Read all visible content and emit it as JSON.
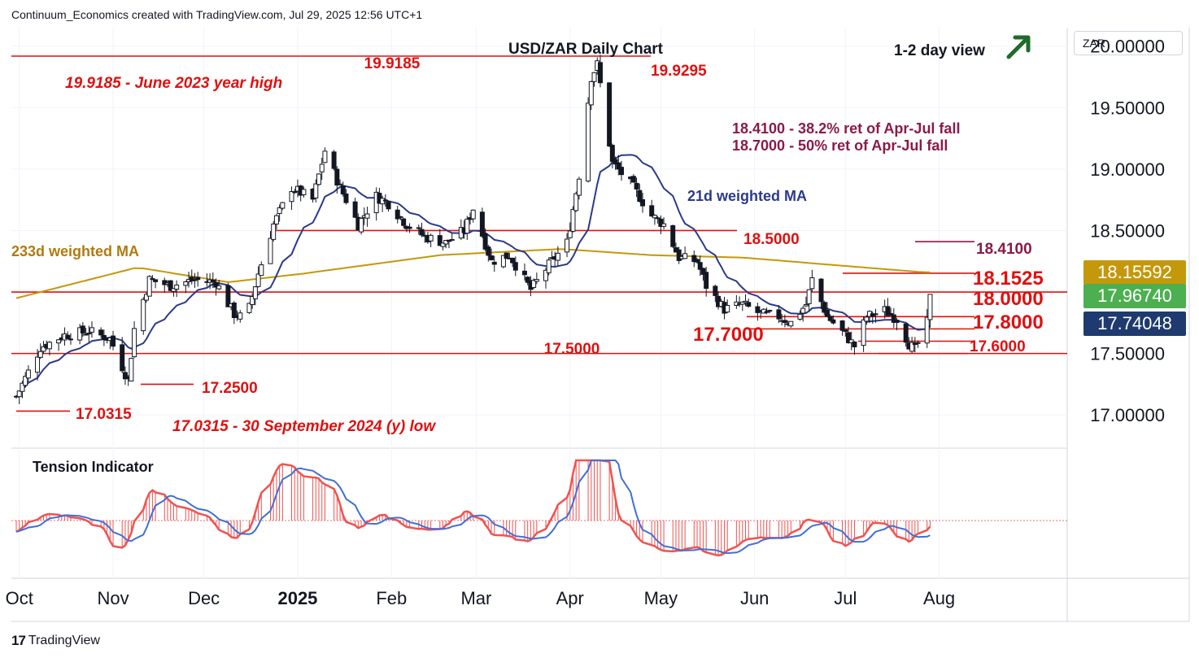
{
  "header": {
    "source": "Continuum_Economics created with TradingView.com, Jul 29, 2025 12:56 UTC+1"
  },
  "footer": {
    "brand": "TradingView"
  },
  "currency_label": "ZAR",
  "chart_data": {
    "type": "candlestick",
    "title": "USD/ZAR Daily Chart",
    "view_label": "1-2 day view",
    "view_direction": "up-arrow-icon",
    "ylim": [
      16.75,
      20.15
    ],
    "y_ticks": [
      "20.00000",
      "19.50000",
      "19.00000",
      "18.50000",
      "18.00000",
      "17.50000",
      "17.00000"
    ],
    "y_tick_values": [
      20.0,
      19.5,
      19.0,
      18.5,
      18.0,
      17.5,
      17.0
    ],
    "x_tick_labels": [
      "Oct",
      "Nov",
      "Dec",
      "2025",
      "Feb",
      "Mar",
      "Apr",
      "May",
      "Jun",
      "Jul",
      "Aug"
    ],
    "price_badges": [
      {
        "label": "18.15592",
        "value": 18.15592,
        "color": "#c4980b"
      },
      {
        "label": "17.96740",
        "value": 17.9674,
        "color": "#4caf50"
      },
      {
        "label": "17.74048",
        "value": 17.74048,
        "color": "#1e3a6e"
      }
    ],
    "levels": [
      {
        "label": "19.9185",
        "value": 19.9185
      },
      {
        "label": "19.9295",
        "value": 19.9295
      },
      {
        "label": "18.5000",
        "value": 18.5
      },
      {
        "label": "18.4100",
        "value": 18.41
      },
      {
        "label": "18.1525",
        "value": 18.1525
      },
      {
        "label": "18.0000",
        "value": 18.0
      },
      {
        "label": "17.8000",
        "value": 17.8
      },
      {
        "label": "17.7000",
        "value": 17.7
      },
      {
        "label": "17.6000",
        "value": 17.6
      },
      {
        "label": "17.5000",
        "value": 17.5
      },
      {
        "label": "17.2500",
        "value": 17.25
      },
      {
        "label": "17.0315",
        "value": 17.0315
      }
    ],
    "annotations": [
      "19.9185 - June 2023 year high",
      "18.4100 - 38.2% ret of Apr-Jul fall",
      "18.7000 - 50% ret of Apr-Jul fall",
      "21d weighted MA",
      "233d weighted MA",
      "17.0315 - 30 September 2024 (y) low"
    ],
    "indicator_title": "Tension Indicator",
    "close_path": [
      [
        "Sep 30",
        17.15
      ],
      [
        "Oct 8",
        17.55
      ],
      [
        "Oct 16",
        17.65
      ],
      [
        "Oct 24",
        17.68
      ],
      [
        "Oct 31",
        17.62
      ],
      [
        "Nov 6",
        17.28
      ],
      [
        "Nov 8",
        17.7
      ],
      [
        "Nov 13",
        18.1
      ],
      [
        "Nov 20",
        18.05
      ],
      [
        "Nov 28",
        18.1
      ],
      [
        "Dec 5",
        18.08
      ],
      [
        "Dec 11",
        17.82
      ],
      [
        "Dec 15",
        17.78
      ],
      [
        "Dec 19",
        18.15
      ],
      [
        "Dec 24",
        18.55
      ],
      [
        "Dec 30",
        18.85
      ],
      [
        "Jan 6",
        18.75
      ],
      [
        "Jan 10",
        19.15
      ],
      [
        "Jan 15",
        18.85
      ],
      [
        "Jan 21",
        18.55
      ],
      [
        "Jan 27",
        18.78
      ],
      [
        "Jan 31",
        18.72
      ],
      [
        "Feb 6",
        18.55
      ],
      [
        "Feb 12",
        18.45
      ],
      [
        "Feb 19",
        18.4
      ],
      [
        "Feb 25",
        18.5
      ],
      [
        "Feb 28",
        18.68
      ],
      [
        "Mar 6",
        18.25
      ],
      [
        "Mar 12",
        18.3
      ],
      [
        "Mar 19",
        18.02
      ],
      [
        "Mar 25",
        18.22
      ],
      [
        "Mar 31",
        18.4
      ],
      [
        "Apr 4",
        18.95
      ],
      [
        "Apr 8",
        19.75
      ],
      [
        "Apr 10",
        19.85
      ],
      [
        "Apr 15",
        19.05
      ],
      [
        "Apr 22",
        18.85
      ],
      [
        "Apr 28",
        18.62
      ],
      [
        "May 2",
        18.55
      ],
      [
        "May 7",
        18.28
      ],
      [
        "May 13",
        18.25
      ],
      [
        "May 16",
        18.05
      ],
      [
        "May 22",
        17.86
      ],
      [
        "May 28",
        17.9
      ],
      [
        "Jun 3",
        17.82
      ],
      [
        "Jun 9",
        17.8
      ],
      [
        "Jun 13",
        17.75
      ],
      [
        "Jun 18",
        17.9
      ],
      [
        "Jun 20",
        18.1
      ],
      [
        "Jun 25",
        17.8
      ],
      [
        "Jul 1",
        17.65
      ],
      [
        "Jul 4",
        17.56
      ],
      [
        "Jul 8",
        17.8
      ],
      [
        "Jul 14",
        17.85
      ],
      [
        "Jul 18",
        17.78
      ],
      [
        "Jul 22",
        17.58
      ],
      [
        "Jul 24",
        17.53
      ],
      [
        "Jul 28",
        17.75
      ],
      [
        "Jul 29",
        17.95
      ]
    ]
  }
}
